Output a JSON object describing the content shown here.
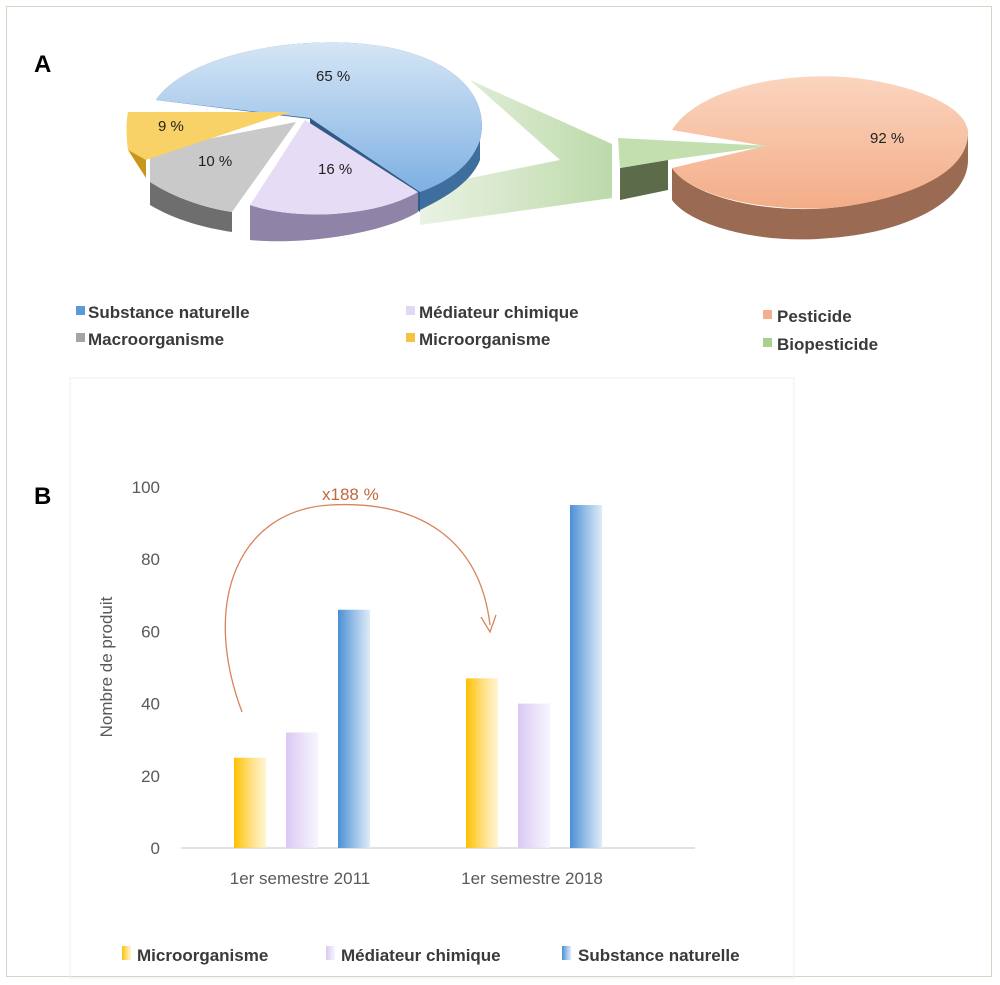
{
  "panel_labels": {
    "a": "A",
    "b": "B"
  },
  "chart_data": [
    {
      "type": "pie",
      "panel": "A",
      "slices": [
        {
          "label": "Substance naturelle",
          "value": 65,
          "display": "65 %",
          "color": "#5b9bd5"
        },
        {
          "label": "Médiateur chimique",
          "value": 16,
          "display": "16 %",
          "color": "#dcd0ee"
        },
        {
          "label": "Macroorganisme",
          "value": 10,
          "display": "10 %",
          "color": "#a5a5a5"
        },
        {
          "label": "Microorganisme",
          "value": 9,
          "display": "9 %",
          "color": "#f5c242"
        }
      ],
      "legend": [
        {
          "label": "Substance naturelle",
          "color": "#5b9bd5"
        },
        {
          "label": "Médiateur chimique",
          "color": "#e2d8f3"
        },
        {
          "label": "Macroorganisme",
          "color": "#a5a5a5"
        },
        {
          "label": "Microorganisme",
          "color": "#f5c242"
        }
      ]
    },
    {
      "type": "pie",
      "panel": "A",
      "slices": [
        {
          "label": "Pesticide",
          "value": 92,
          "display": "92 %",
          "color": "#f4b08c"
        },
        {
          "label": "Biopesticide",
          "value": 8,
          "display": "",
          "color": "#a9d18e"
        }
      ],
      "legend": [
        {
          "label": "Pesticide",
          "color": "#f4b08c"
        },
        {
          "label": "Biopesticide",
          "color": "#a9d18e"
        }
      ]
    },
    {
      "type": "bar",
      "panel": "B",
      "categories": [
        "1er semestre 2011",
        "1er semestre 2018"
      ],
      "series": [
        {
          "name": "Microorganisme",
          "values": [
            25,
            47
          ],
          "color": "#ffc000"
        },
        {
          "name": "Médiateur chimique",
          "values": [
            32,
            40
          ],
          "color": "#d9c8f2"
        },
        {
          "name": "Substance naturelle",
          "values": [
            66,
            95
          ],
          "color": "#4a8fd4"
        }
      ],
      "ylabel": "Nombre de produit",
      "ylim": [
        0,
        100
      ],
      "yticks": [
        0,
        20,
        40,
        60,
        80,
        100
      ],
      "annotation": "x188 %",
      "legend_position": "bottom",
      "grid": false
    }
  ]
}
